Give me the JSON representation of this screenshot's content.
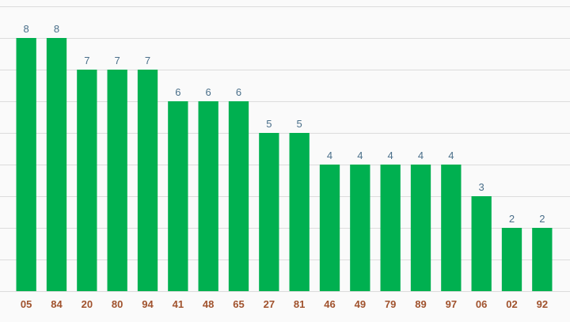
{
  "chart_data": {
    "type": "bar",
    "categories": [
      "05",
      "84",
      "20",
      "80",
      "94",
      "41",
      "48",
      "65",
      "27",
      "81",
      "46",
      "49",
      "79",
      "89",
      "97",
      "06",
      "02",
      "92"
    ],
    "values": [
      8,
      8,
      7,
      7,
      7,
      6,
      6,
      6,
      5,
      5,
      4,
      4,
      4,
      4,
      4,
      3,
      2,
      2
    ],
    "title": "",
    "xlabel": "",
    "ylabel": "",
    "ylim": [
      0,
      9
    ],
    "grid": true,
    "legend": "none",
    "colors": {
      "bar": "#00b050",
      "value_label": "#4a6f8a",
      "tick_label": "#a0522d",
      "grid": "#dcdcdc",
      "background": "#fafafa"
    }
  }
}
